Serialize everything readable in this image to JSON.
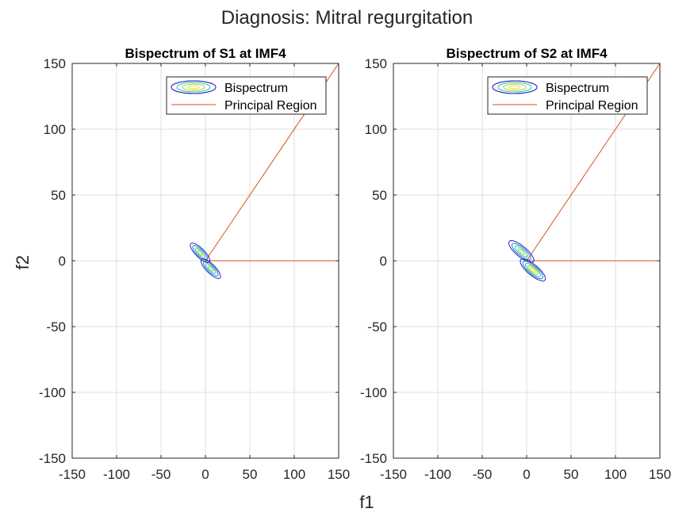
{
  "figure": {
    "suptitle": "Diagnosis: Mitral regurgitation",
    "xlabel": "f1",
    "ylabel": "f2"
  },
  "colors": {
    "axis": "#262626",
    "grid": "#dfdfdf",
    "principal_region": "#d95319",
    "contour_levels": [
      "#2a1cc9",
      "#1e7fd9",
      "#25c2a4",
      "#9fd23a",
      "#f2e11e"
    ]
  },
  "chart_data": [
    {
      "type": "contour",
      "title": "Bispectrum of S1 at IMF4",
      "xlabel": "f1",
      "ylabel": "f2",
      "xlim": [
        -150,
        150
      ],
      "ylim": [
        -150,
        150
      ],
      "xticks": [
        -150,
        -100,
        -50,
        0,
        50,
        100,
        150
      ],
      "yticks": [
        -150,
        -100,
        -50,
        0,
        50,
        100,
        150
      ],
      "grid": true,
      "legend": {
        "placement": "top-right",
        "entries": [
          "Bispectrum",
          "Principal Region"
        ]
      },
      "principal_region": {
        "diagonal": [
          [
            0,
            0
          ],
          [
            150,
            150
          ]
        ],
        "horizontal": [
          [
            0,
            0
          ],
          [
            150,
            0
          ]
        ]
      },
      "contour_blobs": [
        {
          "cx": -6,
          "cy": 6,
          "rx": 5,
          "ry": 10,
          "angle": -45,
          "level": 2
        },
        {
          "cx": 6,
          "cy": -6,
          "rx": 5,
          "ry": 10,
          "angle": -45,
          "level": 2
        }
      ]
    },
    {
      "type": "contour",
      "title": "Bispectrum of S2 at IMF4",
      "xlabel": "f1",
      "ylabel": "f2",
      "xlim": [
        -150,
        150
      ],
      "ylim": [
        -150,
        150
      ],
      "xticks": [
        -150,
        -100,
        -50,
        0,
        50,
        100,
        150
      ],
      "yticks": [
        -150,
        -100,
        -50,
        0,
        50,
        100,
        150
      ],
      "grid": true,
      "legend": {
        "placement": "top-right",
        "entries": [
          "Bispectrum",
          "Principal Region"
        ]
      },
      "principal_region": {
        "diagonal": [
          [
            0,
            0
          ],
          [
            150,
            150
          ]
        ],
        "horizontal": [
          [
            0,
            0
          ],
          [
            150,
            0
          ]
        ]
      },
      "contour_blobs": [
        {
          "cx": -6,
          "cy": 7,
          "rx": 6,
          "ry": 12,
          "angle": -50,
          "level": 2
        },
        {
          "cx": 7,
          "cy": -7,
          "rx": 6,
          "ry": 12,
          "angle": -50,
          "level": 3
        }
      ]
    }
  ]
}
